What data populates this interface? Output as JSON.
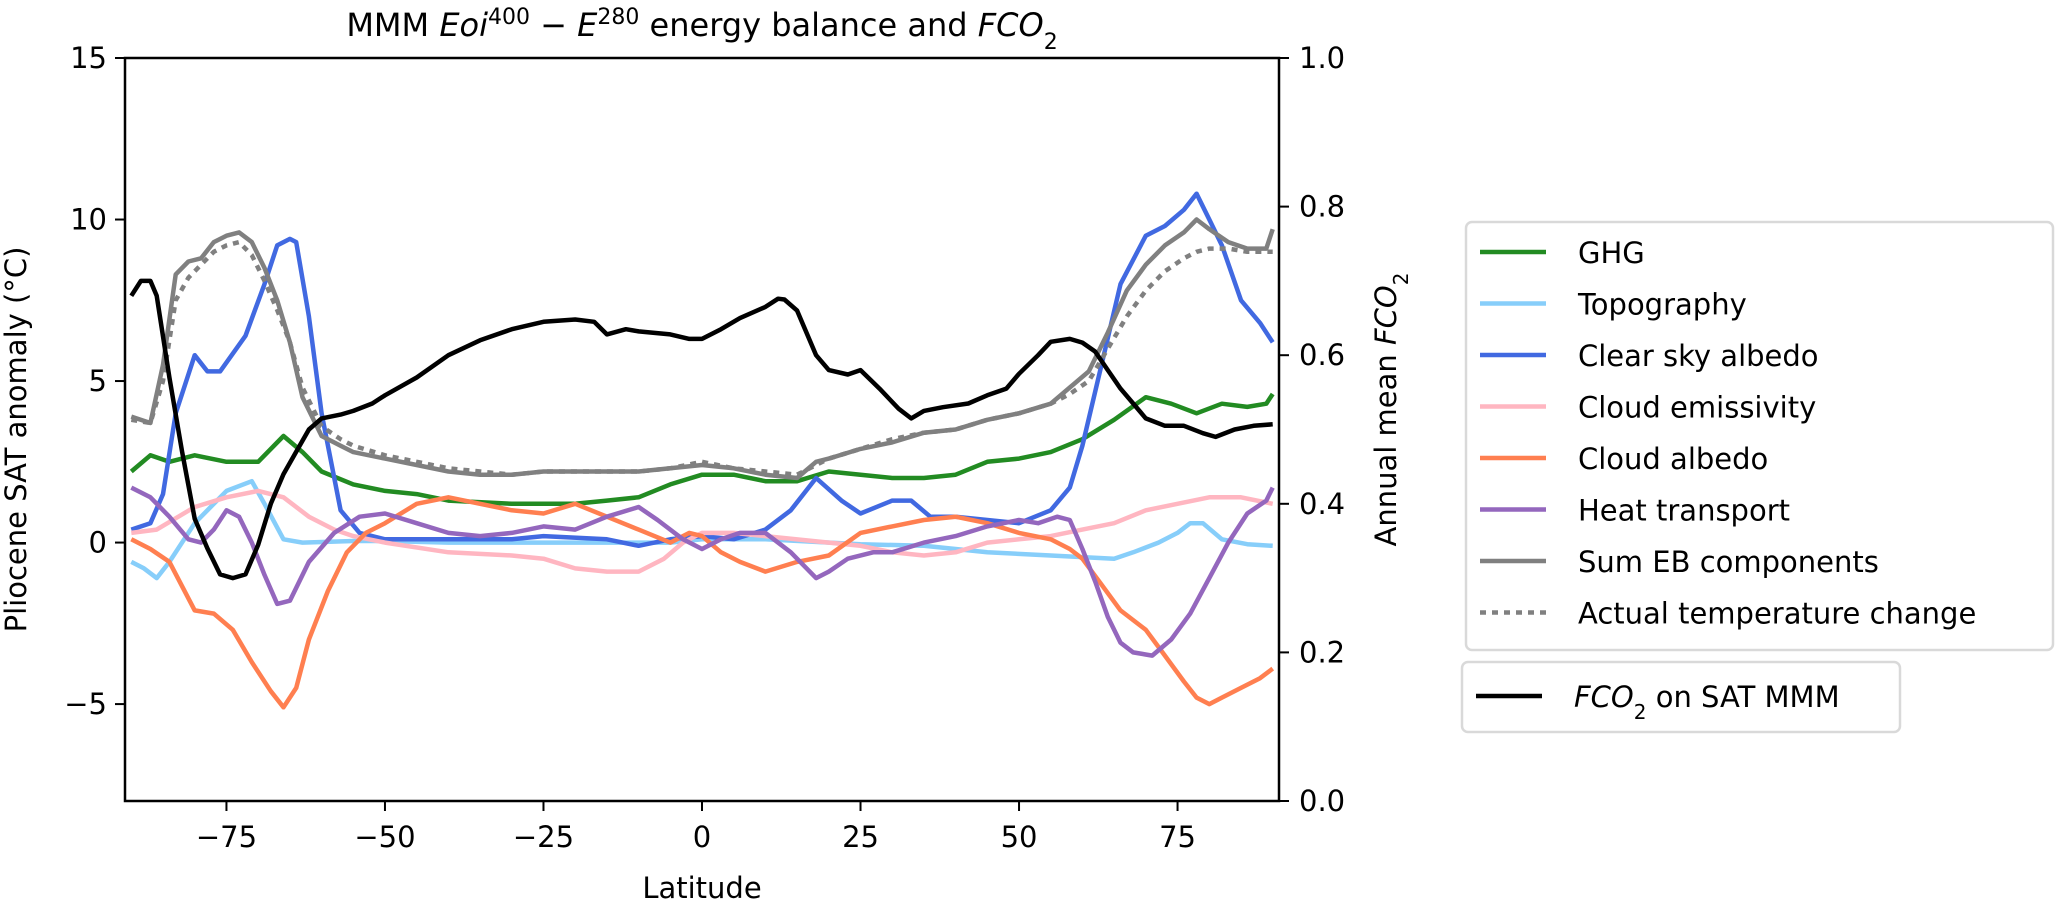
{
  "chart_data": {
    "type": "line",
    "title": {
      "parts": [
        {
          "text": "MMM ",
          "style": "normal"
        },
        {
          "text": "Eoi",
          "style": "italic"
        },
        {
          "text": "400",
          "style": "sup"
        },
        {
          "text": " − ",
          "style": "normal"
        },
        {
          "text": "E",
          "style": "italic"
        },
        {
          "text": "280",
          "style": "sup"
        },
        {
          "text": " energy balance and ",
          "style": "normal"
        },
        {
          "text": "FCO",
          "style": "italic"
        },
        {
          "text": "2",
          "style": "sub"
        }
      ],
      "plain": "MMM Eoi^400 − E^280 energy balance and FCO2"
    },
    "xlabel": "Latitude",
    "ylabel": "Pliocene SAT anomaly (°C)",
    "y2label": {
      "parts": [
        {
          "text": "Annual mean ",
          "style": "normal"
        },
        {
          "text": "FCO",
          "style": "italic"
        },
        {
          "text": "2",
          "style": "sub"
        }
      ],
      "plain": "Annual mean FCO2"
    },
    "xlim": [
      -91,
      91
    ],
    "ylim": [
      -8,
      15
    ],
    "y2lim": [
      0.0,
      1.0
    ],
    "xticks": [
      -75,
      -50,
      -25,
      0,
      25,
      50,
      75
    ],
    "xtick_labels": [
      "−75",
      "−50",
      "−25",
      "0",
      "25",
      "50",
      "75"
    ],
    "yticks": [
      -5,
      0,
      5,
      10,
      15
    ],
    "ytick_labels": [
      "−5",
      "0",
      "5",
      "10",
      "15"
    ],
    "y2ticks": [
      0.0,
      0.2,
      0.4,
      0.6,
      0.8,
      1.0
    ],
    "y2tick_labels": [
      "0.0",
      "0.2",
      "0.4",
      "0.6",
      "0.8",
      "1.0"
    ],
    "grid": false,
    "legend_position": "right-outside",
    "series": [
      {
        "name": "GHG",
        "axis": "left",
        "color": "#228B22",
        "dash": "solid",
        "x": [
          -90,
          -87,
          -84,
          -80,
          -75,
          -70,
          -66,
          -63,
          -60,
          -55,
          -50,
          -45,
          -40,
          -30,
          -25,
          -20,
          -15,
          -10,
          -5,
          0,
          5,
          10,
          15,
          20,
          25,
          30,
          35,
          40,
          45,
          50,
          55,
          60,
          65,
          70,
          74,
          78,
          82,
          86,
          89,
          90
        ],
        "y": [
          2.2,
          2.7,
          2.5,
          2.7,
          2.5,
          2.5,
          3.3,
          2.8,
          2.2,
          1.8,
          1.6,
          1.5,
          1.3,
          1.2,
          1.2,
          1.2,
          1.3,
          1.4,
          1.8,
          2.1,
          2.1,
          1.9,
          1.9,
          2.2,
          2.1,
          2.0,
          2.0,
          2.1,
          2.5,
          2.6,
          2.8,
          3.2,
          3.8,
          4.5,
          4.3,
          4.0,
          4.3,
          4.2,
          4.3,
          4.6
        ]
      },
      {
        "name": "Topography",
        "axis": "left",
        "color": "#87CEFA",
        "dash": "solid",
        "x": [
          -90,
          -88,
          -86,
          -84,
          -80,
          -75,
          -71,
          -69,
          -66,
          -63,
          -55,
          -50,
          -40,
          -30,
          -25,
          -15,
          -5,
          0,
          10,
          25,
          35,
          45,
          55,
          60,
          65,
          68,
          72,
          75,
          77,
          79,
          82,
          86,
          90
        ],
        "y": [
          -0.6,
          -0.8,
          -1.1,
          -0.6,
          0.6,
          1.6,
          1.9,
          1.2,
          0.1,
          0.0,
          0.05,
          0.05,
          0.0,
          0.0,
          0.0,
          0.0,
          0.0,
          0.1,
          0.1,
          -0.05,
          -0.1,
          -0.3,
          -0.4,
          -0.45,
          -0.5,
          -0.3,
          0.0,
          0.3,
          0.6,
          0.6,
          0.1,
          -0.05,
          -0.1
        ]
      },
      {
        "name": "Clear sky albedo",
        "axis": "left",
        "color": "#4169E1",
        "dash": "solid",
        "x": [
          -90,
          -87,
          -85,
          -83,
          -80,
          -78,
          -76,
          -72,
          -69,
          -67,
          -65,
          -64,
          -62,
          -60,
          -57,
          -54,
          -50,
          -40,
          -30,
          -25,
          -15,
          -10,
          -5,
          0,
          5,
          10,
          14,
          18,
          22,
          25,
          30,
          33,
          36,
          40,
          45,
          50,
          55,
          58,
          60,
          63,
          66,
          70,
          73,
          76,
          78,
          80,
          82,
          85,
          88,
          90
        ],
        "y": [
          0.4,
          0.6,
          1.5,
          4.0,
          5.8,
          5.3,
          5.3,
          6.4,
          8.0,
          9.2,
          9.4,
          9.3,
          7.0,
          4.0,
          1.0,
          0.3,
          0.1,
          0.1,
          0.1,
          0.2,
          0.1,
          -0.1,
          0.1,
          0.2,
          0.1,
          0.4,
          1.0,
          2.0,
          1.3,
          0.9,
          1.3,
          1.3,
          0.8,
          0.8,
          0.7,
          0.6,
          1.0,
          1.7,
          3.0,
          5.5,
          8.0,
          9.5,
          9.8,
          10.3,
          10.8,
          10.0,
          9.2,
          7.5,
          6.8,
          6.2
        ]
      },
      {
        "name": "Cloud emissivity",
        "axis": "left",
        "color": "#FFB6C1",
        "dash": "solid",
        "x": [
          -90,
          -86,
          -80,
          -75,
          -70,
          -66,
          -62,
          -58,
          -55,
          -50,
          -40,
          -30,
          -25,
          -20,
          -15,
          -10,
          -6,
          -3,
          0,
          5,
          10,
          20,
          25,
          30,
          35,
          40,
          45,
          50,
          55,
          60,
          65,
          70,
          75,
          80,
          85,
          90
        ],
        "y": [
          0.3,
          0.4,
          1.1,
          1.4,
          1.6,
          1.4,
          0.8,
          0.4,
          0.2,
          0.0,
          -0.3,
          -0.4,
          -0.5,
          -0.8,
          -0.9,
          -0.9,
          -0.5,
          0.0,
          0.3,
          0.3,
          0.2,
          0.0,
          -0.1,
          -0.3,
          -0.4,
          -0.3,
          0.0,
          0.1,
          0.2,
          0.4,
          0.6,
          1.0,
          1.2,
          1.4,
          1.4,
          1.2
        ]
      },
      {
        "name": "Cloud albedo",
        "axis": "left",
        "color": "#FF7F50",
        "dash": "solid",
        "x": [
          -90,
          -87,
          -84,
          -80,
          -77,
          -74,
          -71,
          -68,
          -66,
          -64,
          -62,
          -59,
          -56,
          -53,
          -50,
          -45,
          -40,
          -35,
          -30,
          -25,
          -20,
          -15,
          -10,
          -5,
          -2,
          0,
          3,
          6,
          10,
          15,
          20,
          25,
          30,
          35,
          40,
          45,
          50,
          55,
          58,
          60,
          63,
          66,
          70,
          73,
          76,
          78,
          80,
          82,
          85,
          88,
          90
        ],
        "y": [
          0.1,
          -0.2,
          -0.6,
          -2.1,
          -2.2,
          -2.7,
          -3.7,
          -4.6,
          -5.1,
          -4.5,
          -3.0,
          -1.5,
          -0.3,
          0.3,
          0.6,
          1.2,
          1.4,
          1.2,
          1.0,
          0.9,
          1.2,
          0.8,
          0.4,
          0.0,
          0.3,
          0.2,
          -0.3,
          -0.6,
          -0.9,
          -0.6,
          -0.4,
          0.3,
          0.5,
          0.7,
          0.8,
          0.6,
          0.3,
          0.1,
          -0.2,
          -0.5,
          -1.3,
          -2.1,
          -2.7,
          -3.5,
          -4.3,
          -4.8,
          -5.0,
          -4.8,
          -4.5,
          -4.2,
          -3.9
        ]
      },
      {
        "name": "Heat transport",
        "axis": "left",
        "color": "#9467BD",
        "dash": "solid",
        "x": [
          -90,
          -87,
          -84,
          -81,
          -79,
          -77,
          -75,
          -73,
          -71,
          -69,
          -67,
          -65,
          -62,
          -58,
          -54,
          -50,
          -45,
          -40,
          -35,
          -30,
          -25,
          -20,
          -15,
          -10,
          -7,
          -3,
          0,
          3,
          6,
          10,
          14,
          18,
          20,
          23,
          27,
          30,
          35,
          40,
          45,
          50,
          53,
          56,
          58,
          60,
          62,
          64,
          66,
          68,
          71,
          74,
          77,
          80,
          83,
          86,
          89,
          90
        ],
        "y": [
          1.7,
          1.4,
          0.8,
          0.1,
          0.0,
          0.4,
          1.0,
          0.8,
          0.0,
          -1.0,
          -1.9,
          -1.8,
          -0.6,
          0.3,
          0.8,
          0.9,
          0.6,
          0.3,
          0.2,
          0.3,
          0.5,
          0.4,
          0.8,
          1.1,
          0.7,
          0.1,
          -0.2,
          0.1,
          0.3,
          0.3,
          -0.3,
          -1.1,
          -0.9,
          -0.5,
          -0.3,
          -0.3,
          0.0,
          0.2,
          0.5,
          0.7,
          0.6,
          0.8,
          0.7,
          -0.2,
          -1.2,
          -2.3,
          -3.1,
          -3.4,
          -3.5,
          -3.0,
          -2.2,
          -1.1,
          0.0,
          0.9,
          1.3,
          1.7
        ]
      },
      {
        "name": "Sum EB components",
        "axis": "left",
        "color": "#808080",
        "dash": "solid",
        "x": [
          -90,
          -87,
          -85,
          -83,
          -81,
          -79,
          -77,
          -75,
          -73,
          -71,
          -69,
          -67,
          -65,
          -63,
          -60,
          -57,
          -55,
          -50,
          -45,
          -40,
          -35,
          -30,
          -25,
          -20,
          -15,
          -10,
          -5,
          0,
          5,
          10,
          15,
          18,
          20,
          25,
          30,
          35,
          40,
          45,
          50,
          55,
          58,
          61,
          64,
          67,
          70,
          73,
          76,
          78,
          80,
          83,
          86,
          89,
          90
        ],
        "y": [
          3.9,
          3.7,
          5.5,
          8.3,
          8.7,
          8.8,
          9.3,
          9.5,
          9.6,
          9.3,
          8.5,
          7.5,
          6.2,
          4.5,
          3.3,
          3.0,
          2.8,
          2.6,
          2.4,
          2.2,
          2.1,
          2.1,
          2.2,
          2.2,
          2.2,
          2.2,
          2.3,
          2.4,
          2.3,
          2.1,
          2.0,
          2.5,
          2.6,
          2.9,
          3.1,
          3.4,
          3.5,
          3.8,
          4.0,
          4.3,
          4.8,
          5.3,
          6.5,
          7.8,
          8.6,
          9.2,
          9.6,
          10.0,
          9.7,
          9.3,
          9.1,
          9.1,
          9.7
        ]
      },
      {
        "name": "Actual temperature change",
        "axis": "left",
        "color": "#808080",
        "dash": "dotted",
        "x": [
          -90,
          -87,
          -85,
          -83,
          -81,
          -79,
          -77,
          -75,
          -73,
          -71,
          -69,
          -67,
          -65,
          -63,
          -60,
          -57,
          -55,
          -50,
          -45,
          -40,
          -35,
          -30,
          -25,
          -20,
          -15,
          -10,
          -5,
          0,
          5,
          10,
          15,
          18,
          20,
          25,
          30,
          35,
          40,
          45,
          50,
          55,
          58,
          61,
          64,
          67,
          70,
          73,
          76,
          78,
          80,
          83,
          86,
          89,
          90
        ],
        "y": [
          3.8,
          3.7,
          5.0,
          7.5,
          8.2,
          8.6,
          9.0,
          9.2,
          9.3,
          8.9,
          8.1,
          7.2,
          6.2,
          4.8,
          3.6,
          3.2,
          3.0,
          2.7,
          2.5,
          2.3,
          2.2,
          2.1,
          2.2,
          2.2,
          2.2,
          2.2,
          2.3,
          2.5,
          2.3,
          2.2,
          2.1,
          2.4,
          2.6,
          2.9,
          3.2,
          3.4,
          3.5,
          3.8,
          4.0,
          4.3,
          4.6,
          5.0,
          6.0,
          7.0,
          7.8,
          8.4,
          8.8,
          9.0,
          9.1,
          9.1,
          9.0,
          9.0,
          9.0
        ]
      },
      {
        "name": "FCO2 on SAT MMM",
        "axis": "right",
        "color": "#000000",
        "dash": "solid",
        "x": [
          -90,
          -88.5,
          -87,
          -86,
          -84,
          -82,
          -80,
          -78,
          -76,
          -74,
          -72,
          -70,
          -68,
          -66,
          -64,
          -62,
          -60,
          -57,
          -55,
          -52,
          -50,
          -45,
          -40,
          -35,
          -30,
          -25,
          -20,
          -17,
          -15,
          -12,
          -10,
          -5,
          -2,
          0,
          3,
          6,
          10,
          12,
          13,
          15,
          18,
          20,
          23,
          25,
          28,
          31,
          33,
          35,
          38,
          42,
          45,
          48,
          50,
          53,
          55,
          58,
          60,
          62,
          64,
          66,
          68,
          70,
          73,
          76,
          79,
          81,
          84,
          87,
          90
        ],
        "y": [
          0.68,
          0.7,
          0.7,
          0.68,
          0.57,
          0.47,
          0.38,
          0.34,
          0.305,
          0.3,
          0.305,
          0.345,
          0.4,
          0.44,
          0.47,
          0.5,
          0.515,
          0.52,
          0.525,
          0.535,
          0.546,
          0.57,
          0.6,
          0.62,
          0.635,
          0.645,
          0.648,
          0.645,
          0.628,
          0.635,
          0.632,
          0.628,
          0.622,
          0.622,
          0.635,
          0.65,
          0.665,
          0.676,
          0.675,
          0.66,
          0.6,
          0.58,
          0.574,
          0.58,
          0.555,
          0.528,
          0.515,
          0.525,
          0.53,
          0.535,
          0.546,
          0.555,
          0.575,
          0.6,
          0.618,
          0.622,
          0.617,
          0.605,
          0.58,
          0.555,
          0.535,
          0.515,
          0.505,
          0.505,
          0.495,
          0.49,
          0.5,
          0.505,
          0.507
        ]
      }
    ],
    "legends": [
      {
        "group": "energy-balance",
        "entries": [
          "GHG",
          "Topography",
          "Clear sky albedo",
          "Cloud emissivity",
          "Cloud albedo",
          "Heat transport",
          "Sum EB components",
          "Actual temperature change"
        ]
      },
      {
        "group": "fco2",
        "entries": [
          {
            "label_parts": [
              {
                "text": "FCO",
                "style": "italic"
              },
              {
                "text": "2",
                "style": "sub"
              },
              {
                "text": " on SAT MMM",
                "style": "normal"
              }
            ],
            "series": "FCO2 on SAT MMM"
          }
        ]
      }
    ]
  }
}
